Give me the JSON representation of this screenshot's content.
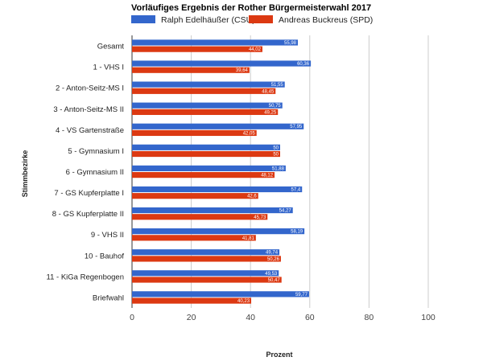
{
  "chart_data": {
    "type": "bar",
    "orientation": "horizontal",
    "title": "Vorläufiges Ergebnis der Rother Bürgermeisterwahl 2017",
    "xlabel": "Prozent",
    "ylabel": "Stimmbezirke",
    "xlim": [
      0,
      100
    ],
    "xticks": [
      "0",
      "20",
      "40",
      "60",
      "80",
      "100"
    ],
    "grid": "vertical",
    "legend_position": "top",
    "categories": [
      "Gesamt",
      "1 - VHS I",
      "2 - Anton-Seitz-MS I",
      "3 - Anton-Seitz-MS II",
      "4 - VS Gartenstraße",
      "5 - Gymnasium I",
      "6 - Gymnasium II",
      "7 - GS Kupferplatte I",
      "8 - GS Kupferplatte II",
      "9 - VHS II",
      "10 - Bauhof",
      "11 - KiGa Regenbogen",
      "Briefwahl"
    ],
    "series": [
      {
        "name": "Ralph Edelhäußer (CSU)",
        "color": "#3366cc",
        "values": [
          55.98,
          60.36,
          51.55,
          50.75,
          57.95,
          50,
          51.88,
          57.4,
          54.27,
          58.19,
          49.74,
          49.53,
          59.77
        ],
        "labels": [
          "55,98",
          "60,36",
          "51,55",
          "50,75",
          "57,95",
          "50",
          "51,88",
          "57,4",
          "54,27",
          "58,19",
          "49,74",
          "49,53",
          "59,77"
        ]
      },
      {
        "name": "Andreas Buckreus (SPD)",
        "color": "#dc3912",
        "values": [
          44.02,
          39.64,
          48.45,
          49.25,
          42.05,
          50,
          48.12,
          42.6,
          45.73,
          41.81,
          50.26,
          50.47,
          40.23
        ],
        "labels": [
          "44,02",
          "39,64",
          "48,45",
          "49,25",
          "42,05",
          "50",
          "48,12",
          "42,6",
          "45,73",
          "41,81",
          "50,26",
          "50,47",
          "40,23"
        ]
      }
    ]
  }
}
